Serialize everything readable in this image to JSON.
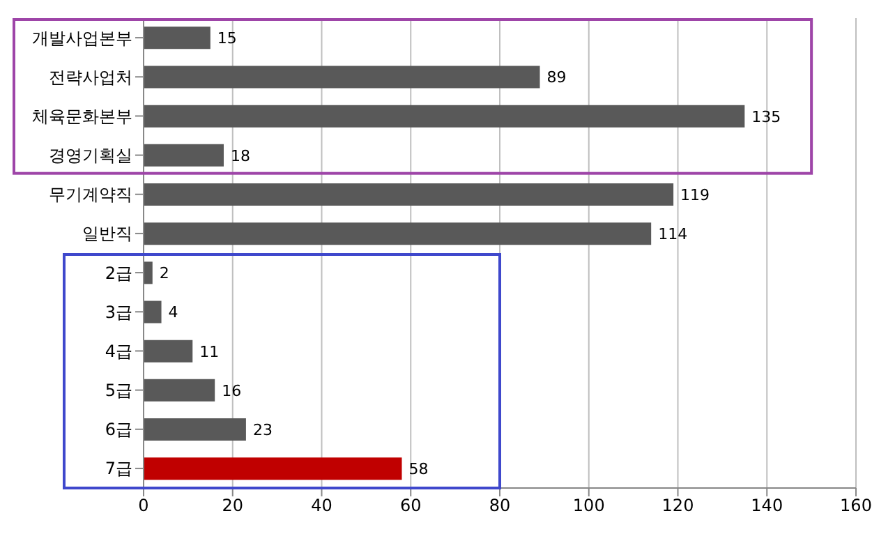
{
  "chart_data": {
    "type": "bar",
    "orientation": "horizontal",
    "categories": [
      "개발사업본부",
      "전략사업처",
      "체육문화본부",
      "경영기획실",
      "무기계약직",
      "일반직",
      "2급",
      "3급",
      "4급",
      "5급",
      "6급",
      "7급"
    ],
    "values": [
      15,
      89,
      135,
      18,
      119,
      114,
      2,
      4,
      11,
      16,
      23,
      58
    ],
    "colors": [
      "#595959",
      "#595959",
      "#595959",
      "#595959",
      "#595959",
      "#595959",
      "#595959",
      "#595959",
      "#595959",
      "#595959",
      "#595959",
      "#c00000"
    ],
    "xlim": [
      0,
      160
    ],
    "xticks": [
      0,
      20,
      40,
      60,
      80,
      100,
      120,
      140,
      160
    ],
    "grid": "x",
    "data_labels": true
  }
}
